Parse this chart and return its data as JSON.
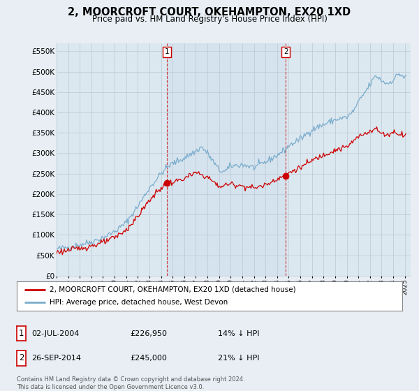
{
  "title": "2, MOORCROFT COURT, OKEHAMPTON, EX20 1XD",
  "subtitle": "Price paid vs. HM Land Registry's House Price Index (HPI)",
  "yticks": [
    0,
    50000,
    100000,
    150000,
    200000,
    250000,
    300000,
    350000,
    400000,
    450000,
    500000,
    550000
  ],
  "ylim": [
    0,
    570000
  ],
  "xlim_start": 1995.0,
  "xlim_end": 2025.5,
  "sale1_x": 2004.5,
  "sale1_y": 226950,
  "sale2_x": 2014.75,
  "sale2_y": 245000,
  "legend_line1": "2, MOORCROFT COURT, OKEHAMPTON, EX20 1XD (detached house)",
  "legend_line2": "HPI: Average price, detached house, West Devon",
  "table_row1": [
    "1",
    "02-JUL-2004",
    "£226,950",
    "14% ↓ HPI"
  ],
  "table_row2": [
    "2",
    "26-SEP-2014",
    "£245,000",
    "21% ↓ HPI"
  ],
  "footer": "Contains HM Land Registry data © Crown copyright and database right 2024.\nThis data is licensed under the Open Government Licence v3.0.",
  "line_color_red": "#cc0000",
  "line_color_blue": "#7aaccc",
  "vline_color": "#cc0000",
  "bg_color": "#e8eef4",
  "plot_bg": "#dce8f0",
  "shade_color": "#dce8f4",
  "grid_color": "#c0ccd8"
}
